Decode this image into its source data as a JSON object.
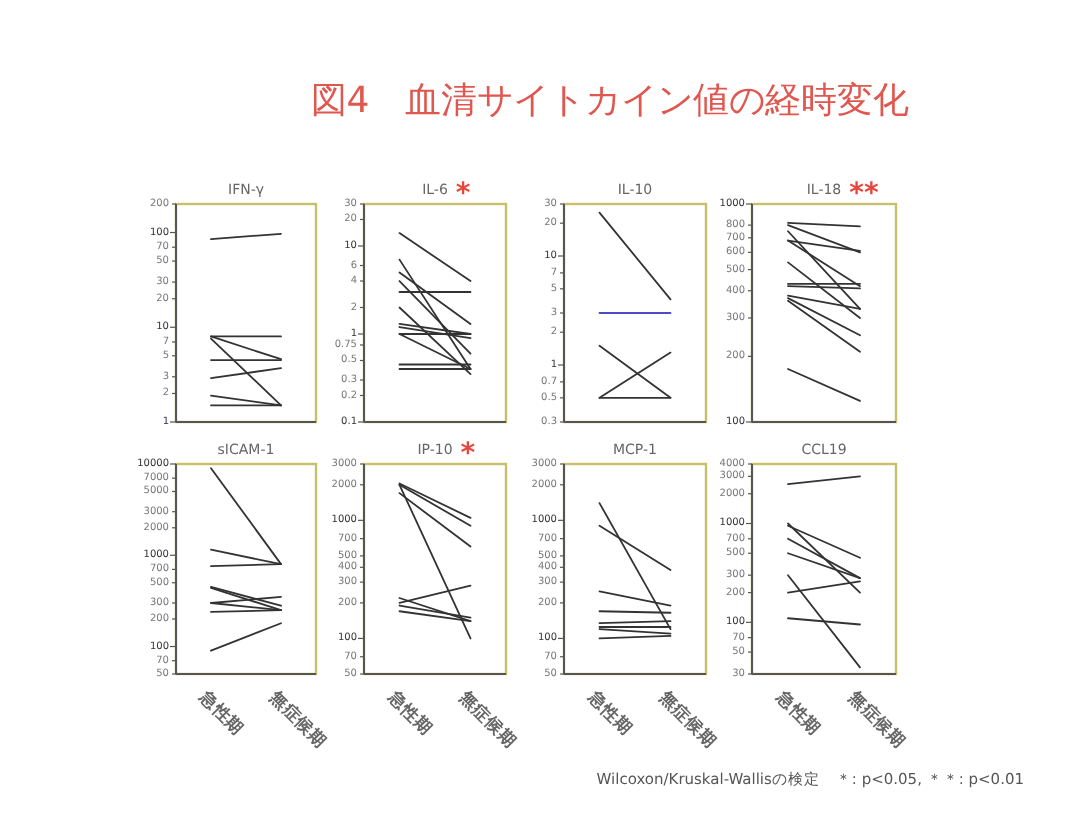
{
  "chart_data": [
    {
      "type": "other",
      "title": "図4　血清サイトカイン値の経時変化"
    },
    {
      "type": "line",
      "title": "IFN-γ",
      "categories": [
        null,
        null
      ],
      "log": true,
      "ylim": [
        1,
        200
      ],
      "yticks": [
        1,
        2,
        3,
        5,
        7,
        10,
        20,
        30,
        50,
        70,
        100,
        200
      ],
      "series": [
        {
          "color": "#333333",
          "values": [
            85,
            97
          ]
        },
        {
          "color": "#333333",
          "values": [
            8,
            8
          ]
        },
        {
          "color": "#333333",
          "values": [
            8,
            4.6
          ]
        },
        {
          "color": "#333333",
          "values": [
            7.6,
            1.5
          ]
        },
        {
          "color": "#333333",
          "values": [
            4.5,
            4.5
          ]
        },
        {
          "color": "#333333",
          "values": [
            2.9,
            3.7
          ]
        },
        {
          "color": "#333333",
          "values": [
            1.9,
            1.5
          ]
        },
        {
          "color": "#333333",
          "values": [
            1.5,
            1.5
          ]
        }
      ]
    },
    {
      "type": "line",
      "title": "IL-6",
      "categories": [
        null,
        null
      ],
      "log": true,
      "ylim": [
        0.1,
        30
      ],
      "yticks": [
        0.1,
        0.2,
        0.3,
        0.5,
        0.75,
        1,
        2,
        4,
        6,
        10,
        20,
        30
      ],
      "annotations": [
        "*"
      ],
      "series": [
        {
          "color": "#333333",
          "values": [
            14,
            4
          ]
        },
        {
          "color": "#333333",
          "values": [
            7,
            0.4
          ]
        },
        {
          "color": "#333333",
          "values": [
            5,
            1.3
          ]
        },
        {
          "color": "#333333",
          "values": [
            4,
            0.6
          ]
        },
        {
          "color": "#333333",
          "values": [
            3,
            3
          ]
        },
        {
          "color": "#333333",
          "values": [
            2,
            0.35
          ]
        },
        {
          "color": "#333333",
          "values": [
            1.3,
            1
          ]
        },
        {
          "color": "#333333",
          "values": [
            1.2,
            0.9
          ]
        },
        {
          "color": "#333333",
          "values": [
            1,
            1
          ]
        },
        {
          "color": "#333333",
          "values": [
            1,
            0.4
          ]
        },
        {
          "color": "#333333",
          "values": [
            0.45,
            0.45
          ]
        },
        {
          "color": "#333333",
          "values": [
            0.4,
            0.4
          ]
        }
      ]
    },
    {
      "type": "line",
      "title": "IL-10",
      "categories": [
        null,
        null
      ],
      "log": true,
      "ylim": [
        0.3,
        30
      ],
      "yticks": [
        0.3,
        0.5,
        0.7,
        1,
        2,
        3,
        5,
        7,
        10,
        20,
        30
      ],
      "series": [
        {
          "color": "#333333",
          "values": [
            25,
            4
          ]
        },
        {
          "color": "#4b4bc8",
          "values": [
            3,
            3
          ]
        },
        {
          "color": "#333333",
          "values": [
            1.5,
            0.5
          ]
        },
        {
          "color": "#333333",
          "values": [
            0.5,
            1.3
          ]
        },
        {
          "color": "#333333",
          "values": [
            0.5,
            0.5
          ]
        }
      ]
    },
    {
      "type": "line",
      "title": "IL-18",
      "categories": [
        null,
        null
      ],
      "log": true,
      "ylim": [
        100,
        1000
      ],
      "yticks": [
        100,
        200,
        300,
        400,
        500,
        600,
        700,
        800,
        1000
      ],
      "annotations": [
        "**"
      ],
      "series": [
        {
          "color": "#333333",
          "values": [
            820,
            790
          ]
        },
        {
          "color": "#333333",
          "values": [
            800,
            600
          ]
        },
        {
          "color": "#333333",
          "values": [
            750,
            330
          ]
        },
        {
          "color": "#333333",
          "values": [
            680,
            610
          ]
        },
        {
          "color": "#333333",
          "values": [
            680,
            420
          ]
        },
        {
          "color": "#333333",
          "values": [
            540,
            300
          ]
        },
        {
          "color": "#333333",
          "values": [
            430,
            430
          ]
        },
        {
          "color": "#333333",
          "values": [
            420,
            410
          ]
        },
        {
          "color": "#333333",
          "values": [
            380,
            330
          ]
        },
        {
          "color": "#333333",
          "values": [
            370,
            250
          ]
        },
        {
          "color": "#333333",
          "values": [
            360,
            210
          ]
        },
        {
          "color": "#333333",
          "values": [
            175,
            125
          ]
        }
      ]
    },
    {
      "type": "line",
      "title": "sICAM-1",
      "categories": [
        "急性期",
        "無症候期"
      ],
      "log": true,
      "ylim": [
        50,
        10000
      ],
      "yticks": [
        50,
        70,
        100,
        200,
        300,
        500,
        700,
        1000,
        2000,
        3000,
        5000,
        7000,
        10000
      ],
      "series": [
        {
          "color": "#333333",
          "values": [
            9000,
            800
          ]
        },
        {
          "color": "#333333",
          "values": [
            1150,
            800
          ]
        },
        {
          "color": "#333333",
          "values": [
            760,
            800
          ]
        },
        {
          "color": "#333333",
          "values": [
            450,
            280
          ]
        },
        {
          "color": "#333333",
          "values": [
            440,
            250
          ]
        },
        {
          "color": "#333333",
          "values": [
            300,
            350
          ]
        },
        {
          "color": "#333333",
          "values": [
            300,
            250
          ]
        },
        {
          "color": "#333333",
          "values": [
            240,
            250
          ]
        },
        {
          "color": "#333333",
          "values": [
            90,
            180
          ]
        }
      ]
    },
    {
      "type": "line",
      "title": "IP-10",
      "categories": [
        "急性期",
        "無症候期"
      ],
      "log": true,
      "ylim": [
        50,
        3000
      ],
      "yticks": [
        50,
        70,
        100,
        200,
        300,
        400,
        500,
        700,
        1000,
        2000,
        3000
      ],
      "annotations": [
        "*"
      ],
      "series": [
        {
          "color": "#333333",
          "values": [
            2050,
            1050
          ]
        },
        {
          "color": "#333333",
          "values": [
            2000,
            900
          ]
        },
        {
          "color": "#333333",
          "values": [
            1700,
            600
          ]
        },
        {
          "color": "#333333",
          "values": [
            2000,
            100
          ]
        },
        {
          "color": "#333333",
          "values": [
            220,
            140
          ]
        },
        {
          "color": "#333333",
          "values": [
            200,
            280
          ]
        },
        {
          "color": "#333333",
          "values": [
            190,
            150
          ]
        },
        {
          "color": "#333333",
          "values": [
            170,
            140
          ]
        }
      ]
    },
    {
      "type": "line",
      "title": "MCP-1",
      "categories": [
        "急性期",
        "無症候期"
      ],
      "log": true,
      "ylim": [
        50,
        3000
      ],
      "yticks": [
        50,
        70,
        100,
        200,
        300,
        400,
        500,
        700,
        1000,
        2000,
        3000
      ],
      "series": [
        {
          "color": "#333333",
          "values": [
            1400,
            120
          ]
        },
        {
          "color": "#333333",
          "values": [
            900,
            380
          ]
        },
        {
          "color": "#333333",
          "values": [
            250,
            190
          ]
        },
        {
          "color": "#333333",
          "values": [
            170,
            165
          ]
        },
        {
          "color": "#333333",
          "values": [
            135,
            140
          ]
        },
        {
          "color": "#333333",
          "values": [
            125,
            125
          ]
        },
        {
          "color": "#333333",
          "values": [
            120,
            110
          ]
        },
        {
          "color": "#333333",
          "values": [
            100,
            105
          ]
        }
      ]
    },
    {
      "type": "line",
      "title": "CCL19",
      "categories": [
        "急性期",
        "無症候期"
      ],
      "log": true,
      "ylim": [
        30,
        4000
      ],
      "yticks": [
        30,
        50,
        70,
        100,
        200,
        300,
        500,
        700,
        1000,
        2000,
        3000,
        4000
      ],
      "annotations": [
        "Wilcoxon/Kruskal-Wallisの検定　＊: p<0.05, ＊＊: p<0.01"
      ],
      "series": [
        {
          "color": "#333333",
          "values": [
            2500,
            3000
          ]
        },
        {
          "color": "#333333",
          "values": [
            1000,
            200
          ]
        },
        {
          "color": "#333333",
          "values": [
            950,
            450
          ]
        },
        {
          "color": "#333333",
          "values": [
            700,
            280
          ]
        },
        {
          "color": "#333333",
          "values": [
            500,
            280
          ]
        },
        {
          "color": "#333333",
          "values": [
            300,
            35
          ]
        },
        {
          "color": "#333333",
          "values": [
            200,
            260
          ]
        },
        {
          "color": "#333333",
          "values": [
            110,
            95
          ]
        }
      ]
    }
  ]
}
